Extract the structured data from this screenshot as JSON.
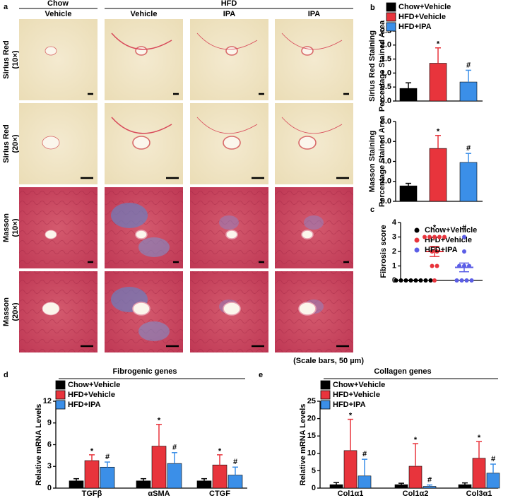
{
  "panel_labels": [
    "a",
    "b",
    "c",
    "d",
    "e"
  ],
  "histology": {
    "group_headers": [
      "Chow",
      "HFD"
    ],
    "column_headers": [
      "Vehicle",
      "Vehicle",
      "IPA",
      "IPA"
    ],
    "row_labels": [
      [
        "Sirius Red",
        "(10×)"
      ],
      [
        "Sirius Red",
        "(20×)"
      ],
      [
        "Masson",
        "(10×)"
      ],
      [
        "Masson",
        "(20×)"
      ]
    ],
    "scale_note": "(Scale bars, 50 µm)"
  },
  "chart_data": [
    {
      "type": "bar",
      "ylabel": [
        "Sirius Red Staining",
        "Percentage Stained Area"
      ],
      "ylim": [
        0,
        2.5
      ],
      "yticks": [
        {
          "value": 0,
          "label": "0.0"
        },
        0.5,
        {
          "value": 1,
          "label": "1.0"
        },
        1.5,
        {
          "value": 2,
          "label": "2.0"
        },
        2.5
      ],
      "series": [
        {
          "name": "Chow+Vehicle",
          "color": "#000000",
          "values": [
            0.45
          ],
          "errors": [
            0.2
          ]
        },
        {
          "name": "HFD+Vehicle",
          "color": "#e8343c",
          "values": [
            1.35
          ],
          "errors": [
            0.55
          ],
          "annotation": "*"
        },
        {
          "name": "HFD+IPA",
          "color": "#3b8fe8",
          "values": [
            0.68
          ],
          "errors": [
            0.42
          ],
          "annotation": "#"
        }
      ]
    },
    {
      "type": "bar",
      "ylabel": [
        "Masson Staining",
        "Percentage Stained Area"
      ],
      "ylim": [
        0,
        8
      ],
      "yticks": [
        {
          "value": 0,
          "label": "0.0"
        },
        {
          "value": 2,
          "label": "2.0"
        },
        {
          "value": 4,
          "label": "4.0"
        },
        {
          "value": 6,
          "label": "6.0"
        },
        {
          "value": 8,
          "label": "8.0"
        }
      ],
      "series": [
        {
          "color": "#000000",
          "values": [
            1.55
          ],
          "errors": [
            0.25
          ]
        },
        {
          "color": "#e8343c",
          "values": [
            5.3
          ],
          "errors": [
            1.3
          ],
          "annotation": "*"
        },
        {
          "color": "#3b8fe8",
          "values": [
            3.9
          ],
          "errors": [
            0.9
          ],
          "annotation": "#"
        }
      ]
    },
    {
      "type": "scatter",
      "ylabel": "Fibrosis score",
      "ylim": [
        0,
        4
      ],
      "yticks": [
        0,
        1,
        2,
        3,
        4
      ],
      "series": [
        {
          "name": "Chow+Vehicle",
          "color": "#000000",
          "values": [
            0,
            0,
            0,
            0,
            0,
            0,
            0,
            0
          ],
          "mean": 0,
          "sem": 0
        },
        {
          "name": "HFD+Vehicle",
          "color": "#e8343c",
          "values": [
            3,
            3,
            3,
            3,
            3,
            2,
            2,
            1,
            1,
            0
          ],
          "mean": 2.0,
          "sem": 0.35,
          "annotation": "*"
        },
        {
          "name": "HFD+IPA",
          "color": "#5b5ee6",
          "values": [
            3,
            2,
            1,
            1,
            1,
            0,
            0,
            0,
            0
          ],
          "mean": 0.9,
          "sem": 0.3,
          "annotation": "#"
        }
      ]
    },
    {
      "type": "bar",
      "title": "Fibrogenic genes",
      "ylabel": "Relative mRNA Levels",
      "ylim": [
        0,
        12
      ],
      "yticks": [
        0,
        3,
        6,
        9,
        12
      ],
      "categories": [
        "TGFβ",
        "αSMA",
        "CTGF"
      ],
      "series": [
        {
          "name": "Chow+Vehicle",
          "color": "#000000",
          "values": [
            1,
            1,
            1
          ],
          "errors": [
            0.3,
            0.3,
            0.3
          ]
        },
        {
          "name": "HFD+Vehicle",
          "color": "#e8343c",
          "values": [
            3.8,
            5.8,
            3.2
          ],
          "errors": [
            0.8,
            3.0,
            1.4
          ],
          "annotation": "*"
        },
        {
          "name": "HFD+IPA",
          "color": "#3b8fe8",
          "values": [
            2.9,
            3.4,
            1.8
          ],
          "errors": [
            0.7,
            1.5,
            1.1
          ],
          "annotation": "#"
        }
      ]
    },
    {
      "type": "bar",
      "title": "Collagen genes",
      "ylabel": "Relative mRNA Levels",
      "ylim": [
        0,
        25
      ],
      "yticks": [
        0,
        5,
        10,
        15,
        20,
        25
      ],
      "categories": [
        "Col1α1",
        "Col1α2",
        "Col3α1"
      ],
      "series": [
        {
          "name": "Chow+Vehicle",
          "color": "#000000",
          "values": [
            1,
            1,
            1
          ],
          "errors": [
            0.6,
            0.4,
            0.5
          ]
        },
        {
          "name": "HFD+Vehicle",
          "color": "#e8343c",
          "values": [
            10.8,
            6.3,
            8.6
          ],
          "errors": [
            9,
            6.5,
            4.8
          ],
          "annotation": "*"
        },
        {
          "name": "HFD+IPA",
          "color": "#3b8fe8",
          "values": [
            3.5,
            0.5,
            4.3
          ],
          "errors": [
            4.8,
            0.4,
            2.6
          ],
          "annotation": "#"
        }
      ]
    }
  ]
}
